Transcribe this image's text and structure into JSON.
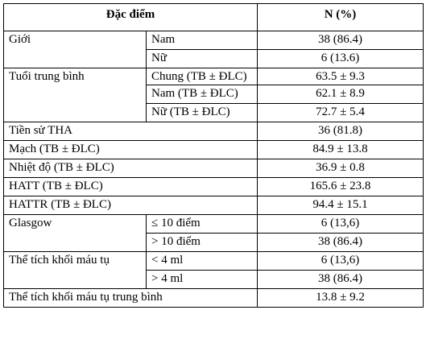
{
  "header": {
    "feature": "Đặc điểm",
    "value": "N (%)"
  },
  "rows": {
    "gender": {
      "label": "Giới",
      "male": "Nam",
      "male_val": "38 (86.4)",
      "female": "Nữ",
      "female_val": "6 (13.6)"
    },
    "age": {
      "label": "Tuổi trung bình",
      "general": "Chung (TB ± ĐLC)",
      "general_val": "63.5 ± 9.3",
      "male": "Nam (TB ± ĐLC)",
      "male_val": "62.1 ± 8.9",
      "female": "Nữ (TB ± ĐLC)",
      "female_val": "72.7 ± 5.4"
    },
    "hypertension_history": {
      "label": "Tiền sử THA",
      "val": "36 (81.8)"
    },
    "pulse": {
      "label": "Mạch (TB ± ĐLC)",
      "val": "84.9 ± 13.8"
    },
    "temperature": {
      "label": "Nhiệt độ (TB ± ĐLC)",
      "val": "36.9  ± 0.8"
    },
    "systolic": {
      "label": "HATT  (TB ± ĐLC)",
      "val": "165.6  ± 23.8"
    },
    "diastolic": {
      "label": "HATTR  (TB ± ĐLC)",
      "val": "94.4  ± 15.1"
    },
    "glasgow": {
      "label": "Glasgow",
      "low": "≤ 10 điểm",
      "low_val": "6 (13,6)",
      "high": "> 10 điểm",
      "high_val": "38 (86.4)"
    },
    "hematoma_volume": {
      "label": "Thể tích khối máu tụ",
      "low": "< 4 ml",
      "low_val": "6 (13,6)",
      "high": "> 4 ml",
      "high_val": "38 (86.4)"
    },
    "hematoma_mean": {
      "label": "Thể tích khối máu tụ  trung bình",
      "val": "13.8  ± 9.2"
    }
  }
}
